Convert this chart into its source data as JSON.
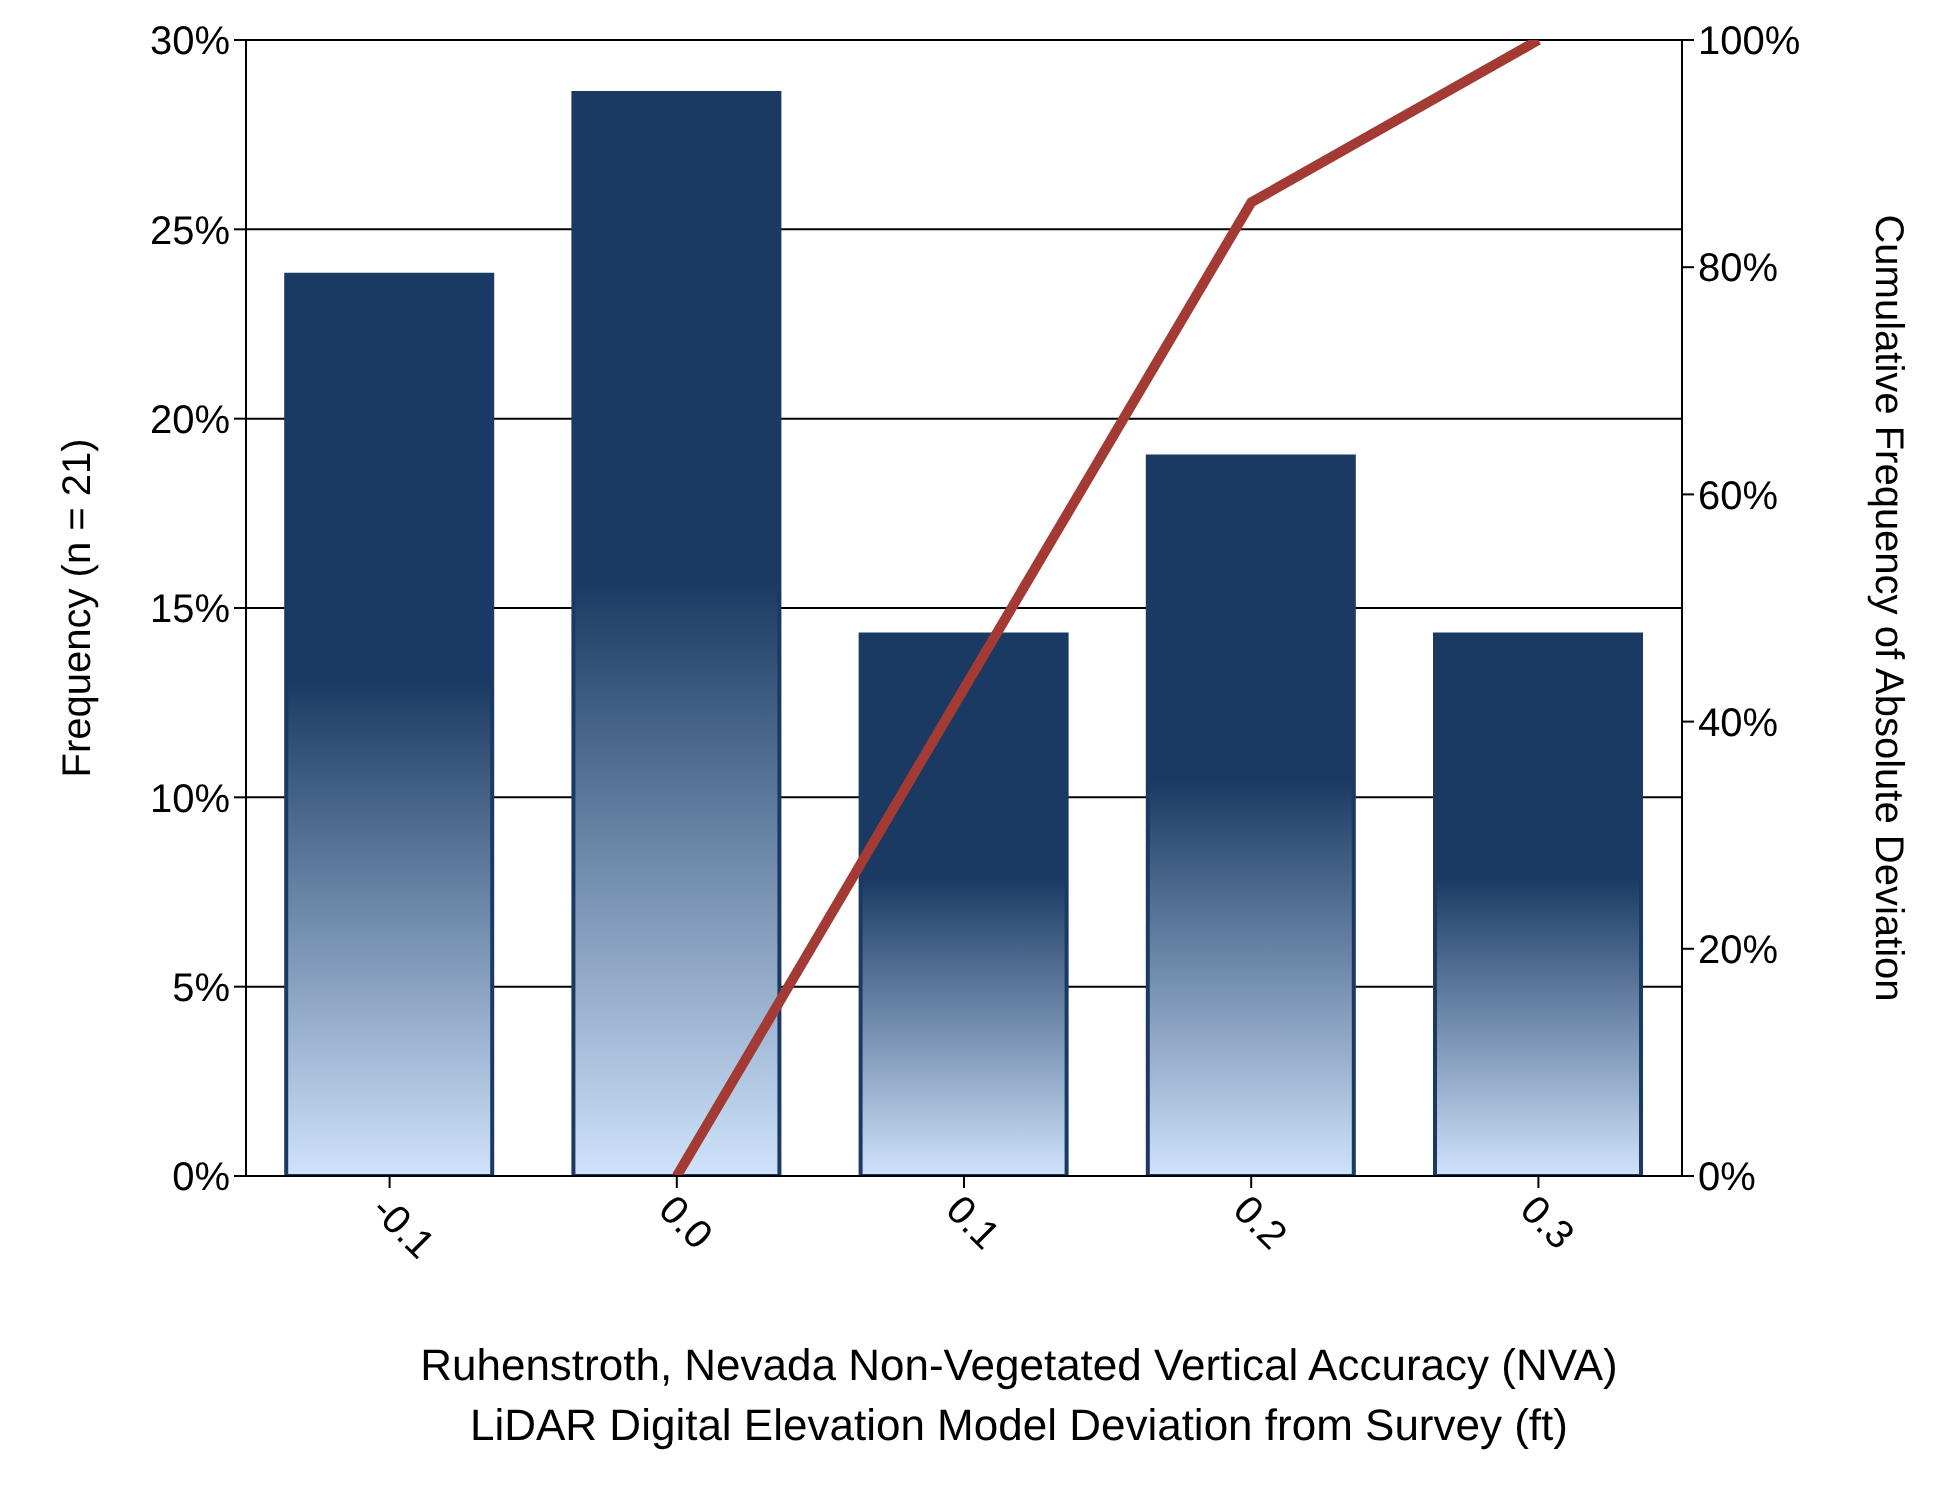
{
  "chart_data": {
    "type": "bar",
    "xlabel": "Ruhenstroth, Nevada Non-Vegetated Vertical Accuracy (NVA)\nLiDAR Digital Elevation Model Deviation from Survey (ft)",
    "ylabel": "Frequency (n = 21)",
    "y2label": "Cumulative Frequency of Absolute Deviation",
    "categories": [
      "-0.1",
      "0.0",
      "0.1",
      "0.2",
      "0.3"
    ],
    "series": [
      {
        "color": "#1b3a63",
        "values": [
          0.238,
          0.286,
          0.143,
          0.19,
          0.143
        ]
      },
      {
        "type": "line",
        "axis": "y2",
        "color": "#a33a34",
        "values": [
          null,
          0,
          0.429,
          0.857,
          1.0
        ]
      }
    ],
    "ylim": [
      0,
      0.3
    ],
    "yticks": [
      {
        "value": 0,
        "label": "0%"
      },
      {
        "value": 0.05,
        "label": "5%"
      },
      {
        "value": 0.1,
        "label": "10%"
      },
      {
        "value": 0.15,
        "label": "15%"
      },
      {
        "value": 0.2,
        "label": "20%"
      },
      {
        "value": 0.25,
        "label": "25%"
      },
      {
        "value": 0.3,
        "label": "30%"
      }
    ],
    "y2lim": [
      0,
      1
    ],
    "y2ticks": [
      {
        "value": 0,
        "label": "0%"
      },
      {
        "value": 0.2,
        "label": "20%"
      },
      {
        "value": 0.4,
        "label": "40%"
      },
      {
        "value": 0.6,
        "label": "60%"
      },
      {
        "value": 0.8,
        "label": "80%"
      },
      {
        "value": 1,
        "label": "100%"
      }
    ],
    "grid": "y",
    "marker": "none",
    "line_style": "solid"
  }
}
